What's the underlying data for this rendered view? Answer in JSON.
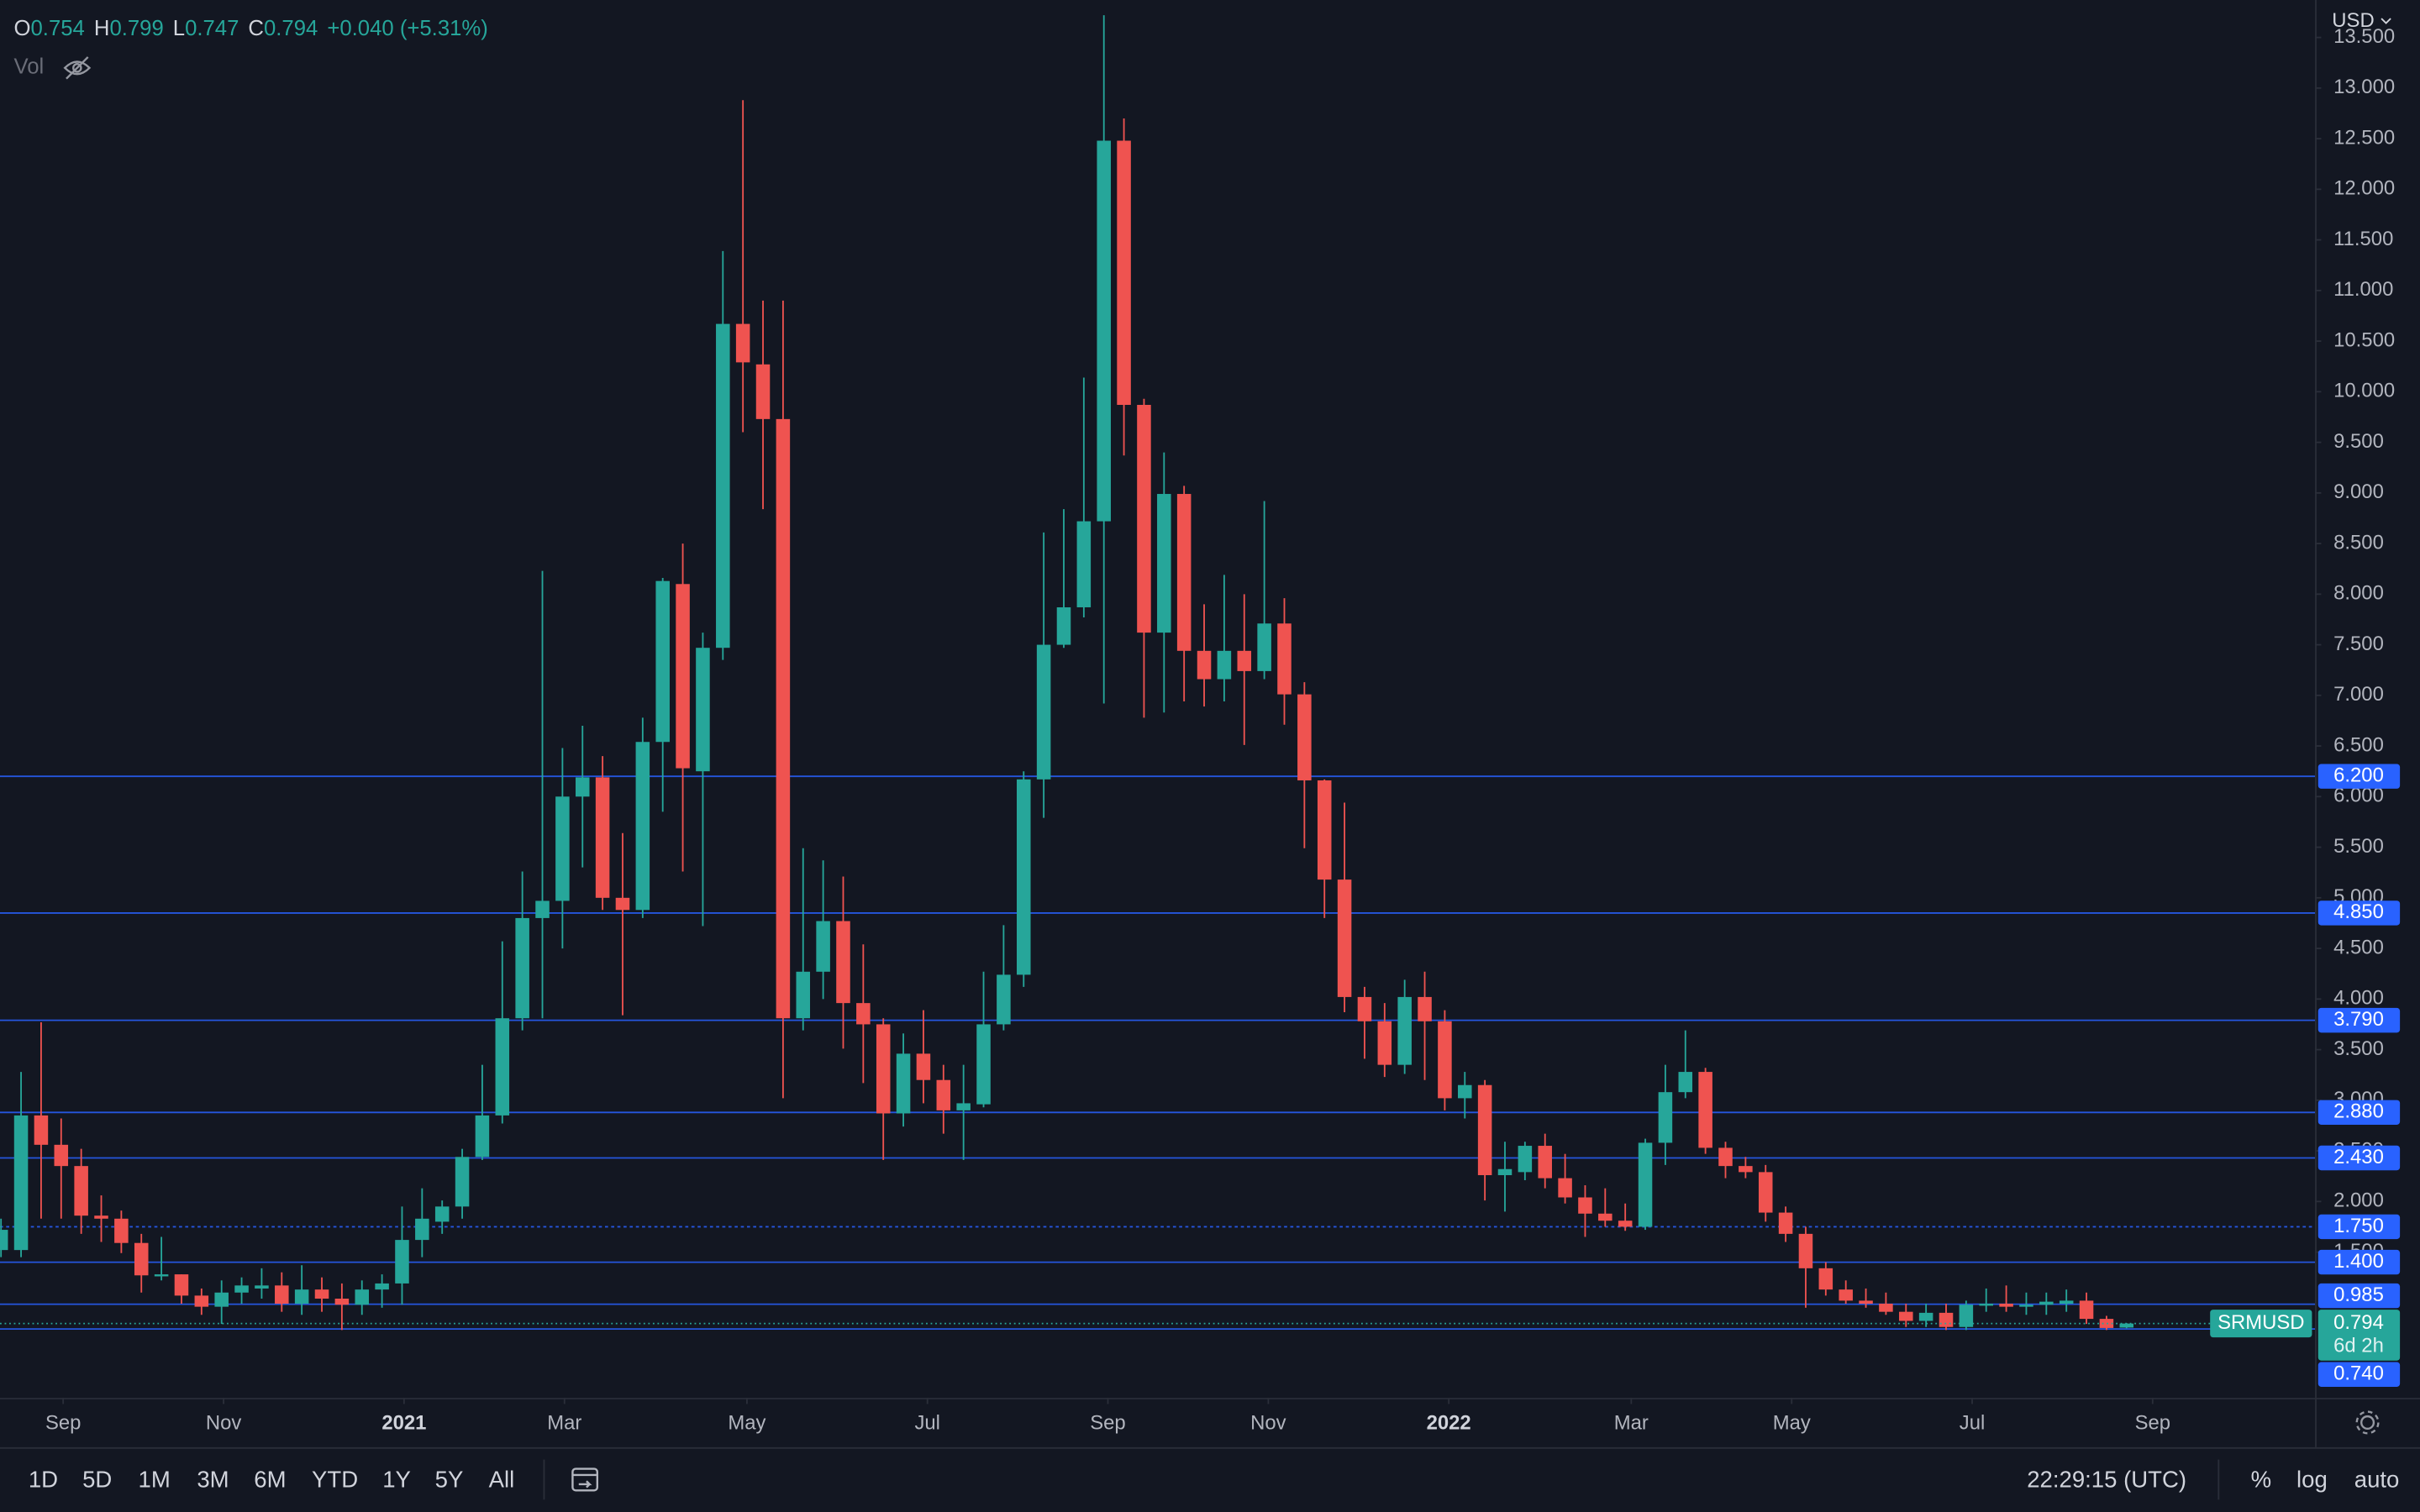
{
  "chart_data": {
    "type": "candlestick",
    "symbol": "SRMUSD",
    "currency": "USD",
    "header": {
      "labels": [
        "O",
        "H",
        "L",
        "C"
      ],
      "values": [
        "0.754",
        "0.799",
        "0.747",
        "0.794"
      ],
      "change": "+0.040 (+5.31%)",
      "volume": "Vol"
    },
    "up_color": "#26a69a",
    "down_color": "#ef5350",
    "open": [
      1.52,
      1.52,
      2.85,
      2.56,
      2.35,
      1.86,
      1.83,
      1.59,
      1.26,
      1.28,
      1.07,
      0.96,
      1.1,
      1.14,
      1.17,
      0.99,
      1.13,
      1.04,
      0.98,
      1.13,
      1.19,
      1.62,
      1.8,
      1.95,
      2.44,
      2.85,
      3.81,
      4.8,
      4.97,
      6.0,
      6.19,
      5.0,
      4.88,
      6.54,
      8.1,
      6.25,
      7.47,
      10.67,
      10.27,
      9.73,
      3.81,
      4.27,
      4.77,
      3.96,
      3.75,
      2.87,
      3.46,
      3.2,
      2.9,
      2.96,
      3.75,
      4.24,
      6.17,
      7.5,
      7.87,
      8.72,
      12.48,
      9.87,
      7.62,
      8.99,
      7.44,
      7.16,
      7.44,
      7.24,
      7.71,
      7.01,
      6.16,
      5.18,
      4.02,
      3.78,
      3.35,
      4.02,
      3.78,
      3.02,
      3.15,
      2.26,
      2.29,
      2.55,
      2.23,
      2.04,
      1.88,
      1.81,
      1.75,
      2.58,
      3.08,
      3.28,
      2.53,
      2.35,
      2.29,
      1.89,
      1.68,
      1.34,
      1.13,
      1.02,
      0.99,
      0.91,
      0.82,
      0.9,
      0.76,
      0.97,
      0.99,
      0.96,
      0.98,
      0.99,
      1.02,
      0.84,
      0.754
    ],
    "high": [
      1.83,
      3.28,
      3.77,
      2.82,
      2.52,
      2.06,
      1.91,
      1.68,
      1.65,
      1.28,
      1.14,
      1.22,
      1.25,
      1.34,
      1.3,
      1.37,
      1.25,
      1.19,
      1.22,
      1.28,
      1.95,
      2.13,
      2.01,
      2.52,
      3.35,
      4.57,
      5.26,
      8.23,
      6.48,
      6.7,
      6.4,
      5.64,
      6.78,
      8.16,
      8.5,
      7.62,
      11.39,
      12.88,
      10.9,
      10.9,
      5.49,
      5.37,
      5.21,
      4.54,
      3.81,
      3.66,
      3.89,
      3.35,
      3.35,
      4.27,
      4.73,
      6.25,
      8.61,
      8.84,
      10.14,
      13.72,
      12.7,
      9.93,
      9.4,
      9.07,
      7.9,
      8.19,
      8.0,
      8.92,
      7.96,
      7.13,
      6.17,
      5.94,
      4.12,
      3.96,
      4.19,
      4.27,
      3.89,
      3.28,
      3.2,
      2.59,
      2.59,
      2.67,
      2.47,
      2.16,
      2.13,
      1.98,
      2.62,
      3.35,
      3.69,
      3.32,
      2.59,
      2.44,
      2.36,
      1.95,
      1.75,
      1.4,
      1.22,
      1.14,
      1.1,
      0.99,
      0.99,
      0.99,
      1.02,
      1.14,
      1.17,
      1.1,
      1.1,
      1.13,
      1.1,
      0.87,
      0.799
    ],
    "low": [
      1.45,
      1.45,
      1.83,
      1.83,
      1.68,
      1.6,
      1.49,
      1.1,
      1.22,
      0.99,
      0.88,
      0.79,
      0.99,
      1.04,
      0.91,
      0.88,
      0.91,
      0.73,
      0.88,
      0.95,
      0.98,
      1.45,
      1.68,
      1.83,
      2.41,
      2.77,
      3.69,
      3.81,
      4.5,
      5.3,
      4.88,
      3.84,
      4.8,
      5.85,
      5.26,
      4.72,
      7.35,
      9.6,
      8.84,
      3.02,
      3.69,
      4.0,
      3.51,
      3.17,
      2.41,
      2.74,
      2.97,
      2.67,
      2.41,
      2.93,
      3.69,
      4.12,
      5.79,
      7.47,
      7.77,
      6.92,
      9.37,
      6.78,
      6.83,
      6.94,
      6.89,
      6.94,
      6.51,
      7.16,
      6.71,
      5.49,
      4.8,
      3.87,
      3.41,
      3.23,
      3.26,
      3.2,
      2.9,
      2.82,
      2.01,
      1.9,
      2.21,
      2.13,
      1.98,
      1.65,
      1.75,
      1.71,
      1.72,
      2.36,
      3.02,
      2.47,
      2.23,
      2.23,
      1.8,
      1.6,
      0.95,
      1.07,
      0.99,
      0.95,
      0.88,
      0.76,
      0.76,
      0.73,
      0.73,
      0.91,
      0.91,
      0.88,
      0.88,
      0.91,
      0.79,
      0.73,
      0.747
    ],
    "close": [
      1.72,
      2.85,
      2.56,
      2.35,
      1.86,
      1.83,
      1.59,
      1.27,
      1.28,
      1.07,
      0.96,
      1.1,
      1.17,
      1.17,
      0.99,
      1.13,
      1.04,
      0.98,
      1.13,
      1.19,
      1.62,
      1.83,
      1.95,
      2.44,
      2.85,
      3.81,
      4.8,
      4.97,
      6.0,
      6.19,
      5.0,
      4.88,
      6.54,
      8.13,
      6.28,
      7.47,
      10.67,
      10.29,
      9.73,
      3.81,
      4.27,
      4.77,
      3.96,
      3.75,
      2.87,
      3.46,
      3.2,
      2.9,
      2.97,
      3.75,
      4.24,
      6.17,
      7.5,
      7.87,
      8.72,
      12.48,
      9.87,
      7.62,
      8.99,
      7.44,
      7.16,
      7.44,
      7.24,
      7.71,
      7.01,
      6.16,
      5.18,
      4.02,
      3.78,
      3.35,
      4.02,
      3.78,
      3.02,
      3.15,
      2.26,
      2.32,
      2.55,
      2.23,
      2.04,
      1.88,
      1.81,
      1.75,
      2.58,
      3.08,
      3.28,
      2.53,
      2.35,
      2.29,
      1.89,
      1.68,
      1.34,
      1.13,
      1.02,
      0.99,
      0.91,
      0.82,
      0.9,
      0.76,
      0.98,
      0.99,
      0.96,
      0.98,
      1.01,
      1.02,
      0.84,
      0.75,
      0.794
    ],
    "xlim": [
      -0.05,
      115.4
    ],
    "xticks": [
      {
        "value": 3.1,
        "label": "Sep"
      },
      {
        "value": 11.1,
        "label": "Nov"
      },
      {
        "value": 20.1,
        "label": "2021"
      },
      {
        "value": 28.1,
        "label": "Mar"
      },
      {
        "value": 37.2,
        "label": "May"
      },
      {
        "value": 46.2,
        "label": "Jul"
      },
      {
        "value": 55.2,
        "label": "Sep"
      },
      {
        "value": 63.2,
        "label": "Nov"
      },
      {
        "value": 72.2,
        "label": "2022"
      },
      {
        "value": 81.3,
        "label": "Mar"
      },
      {
        "value": 89.3,
        "label": "May"
      },
      {
        "value": 98.3,
        "label": "Jul"
      },
      {
        "value": 107.3,
        "label": "Sep"
      }
    ],
    "ylim": [
      0.06,
      13.87
    ],
    "yticks": [
      {
        "value": 1.5,
        "label": "1.500"
      },
      {
        "value": 2,
        "label": "2.000"
      },
      {
        "value": 2.5,
        "label": "2.500"
      },
      {
        "value": 3,
        "label": "3.000"
      },
      {
        "value": 3.5,
        "label": "3.500"
      },
      {
        "value": 4,
        "label": "4.000"
      },
      {
        "value": 4.5,
        "label": "4.500"
      },
      {
        "value": 5,
        "label": "5.000"
      },
      {
        "value": 5.5,
        "label": "5.500"
      },
      {
        "value": 6,
        "label": "6.000"
      },
      {
        "value": 6.5,
        "label": "6.500"
      },
      {
        "value": 7,
        "label": "7.000"
      },
      {
        "value": 7.5,
        "label": "7.500"
      },
      {
        "value": 8,
        "label": "8.000"
      },
      {
        "value": 8.5,
        "label": "8.500"
      },
      {
        "value": 9,
        "label": "9.000"
      },
      {
        "value": 9.5,
        "label": "9.500"
      },
      {
        "value": 10,
        "label": "10.000"
      },
      {
        "value": 10.5,
        "label": "10.500"
      },
      {
        "value": 11,
        "label": "11.000"
      },
      {
        "value": 11.5,
        "label": "11.500"
      },
      {
        "value": 12,
        "label": "12.000"
      },
      {
        "value": 12.5,
        "label": "12.500"
      },
      {
        "value": 13,
        "label": "13.000"
      },
      {
        "value": 13.5,
        "label": "13.500"
      }
    ],
    "grid": false,
    "levels": [
      {
        "value": 6.2,
        "label": "6.200"
      },
      {
        "value": 4.85,
        "label": "4.850"
      },
      {
        "value": 3.79,
        "label": "3.790"
      },
      {
        "value": 2.88,
        "label": "2.880"
      },
      {
        "value": 2.43,
        "label": "2.430"
      },
      {
        "value": 1.75,
        "label": "1.750"
      },
      {
        "value": 1.4,
        "label": "1.400"
      },
      {
        "value": 0.985,
        "label": "0.985"
      },
      {
        "value": 0.74,
        "label": "0.740"
      }
    ],
    "level_color": "#2962ff",
    "last_price": {
      "value": 0.794,
      "label": "0.794"
    },
    "countdown": "6d 2h"
  },
  "toolbar": {
    "ranges": [
      "1D",
      "5D",
      "1M",
      "3M",
      "6M",
      "YTD",
      "1Y",
      "5Y",
      "All"
    ],
    "clock": "22:29:15 (UTC)",
    "options": [
      "%",
      "log",
      "auto"
    ]
  }
}
